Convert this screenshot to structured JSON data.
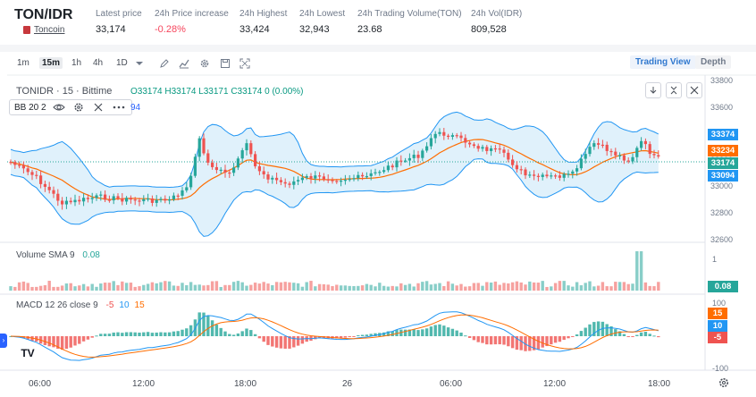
{
  "ticker": {
    "pair": "TON/IDR",
    "coin_link": "Toncoin",
    "stats": [
      {
        "label": "Latest price",
        "value": "33,174",
        "negative": false
      },
      {
        "label": "24h Price increase",
        "value": "-0.28%",
        "negative": true
      },
      {
        "label": "24h Highest",
        "value": "33,424",
        "negative": false
      },
      {
        "label": "24h Lowest",
        "value": "32,943",
        "negative": false
      },
      {
        "label": "24h Trading Volume(TON)",
        "value": "23.68",
        "negative": false
      },
      {
        "label": "24h Vol(IDR)",
        "value": "809,528",
        "negative": false
      }
    ]
  },
  "toolbar": {
    "timeframes": [
      {
        "label": "1m",
        "active": false
      },
      {
        "label": "15m",
        "active": true
      },
      {
        "label": "1h",
        "active": false
      },
      {
        "label": "4h",
        "active": false
      },
      {
        "label": "1D",
        "active": false
      }
    ],
    "tools": [
      "chevron-down-icon",
      "pencil-icon",
      "indicator-icon",
      "gear-icon",
      "save-icon",
      "fullscreen-icon"
    ],
    "trading_view_label": "Trading View",
    "depth_label": "Depth"
  },
  "chart": {
    "symbol_line": "TONIDR · 15 · Bittime",
    "ohlc": "O33174 H33174 L33171 C33174 0 (0.00%)",
    "bb_label": "BB 20 2",
    "bb_value": "94",
    "colors": {
      "up": "#26a69a",
      "down": "#ef5350",
      "band": "#2196f3",
      "fill": "#d6ecfa",
      "basis": "#ff6d00"
    },
    "price_axis": [
      "33800",
      "33600",
      "33400",
      "33200",
      "33000",
      "32800",
      "32600"
    ],
    "price_tags": [
      {
        "text": "33374",
        "color": "#2196f3"
      },
      {
        "text": "33234",
        "color": "#ff6d00"
      },
      {
        "text": "33174",
        "color": "#26a69a"
      },
      {
        "text": "33094",
        "color": "#2196f3"
      }
    ],
    "volume_legend": "Volume SMA 9",
    "volume_value": "0.08",
    "volume_axis_top": "1",
    "volume_tag": "0.08",
    "macd_legend": "MACD 12 26 close 9",
    "macd_values": [
      {
        "text": "-5",
        "color": "#ef5350"
      },
      {
        "text": "10",
        "color": "#2196f3"
      },
      {
        "text": "15",
        "color": "#ff6d00"
      }
    ],
    "macd_axis": [
      "100",
      "-100"
    ],
    "macd_tags": [
      {
        "text": "15",
        "color": "#ff6d00"
      },
      {
        "text": "10",
        "color": "#2196f3"
      },
      {
        "text": "-5",
        "color": "#ef5350"
      }
    ],
    "time_labels": [
      "06:00",
      "12:00",
      "18:00",
      "26",
      "06:00",
      "12:00",
      "18:00"
    ],
    "watermark": "TV"
  }
}
